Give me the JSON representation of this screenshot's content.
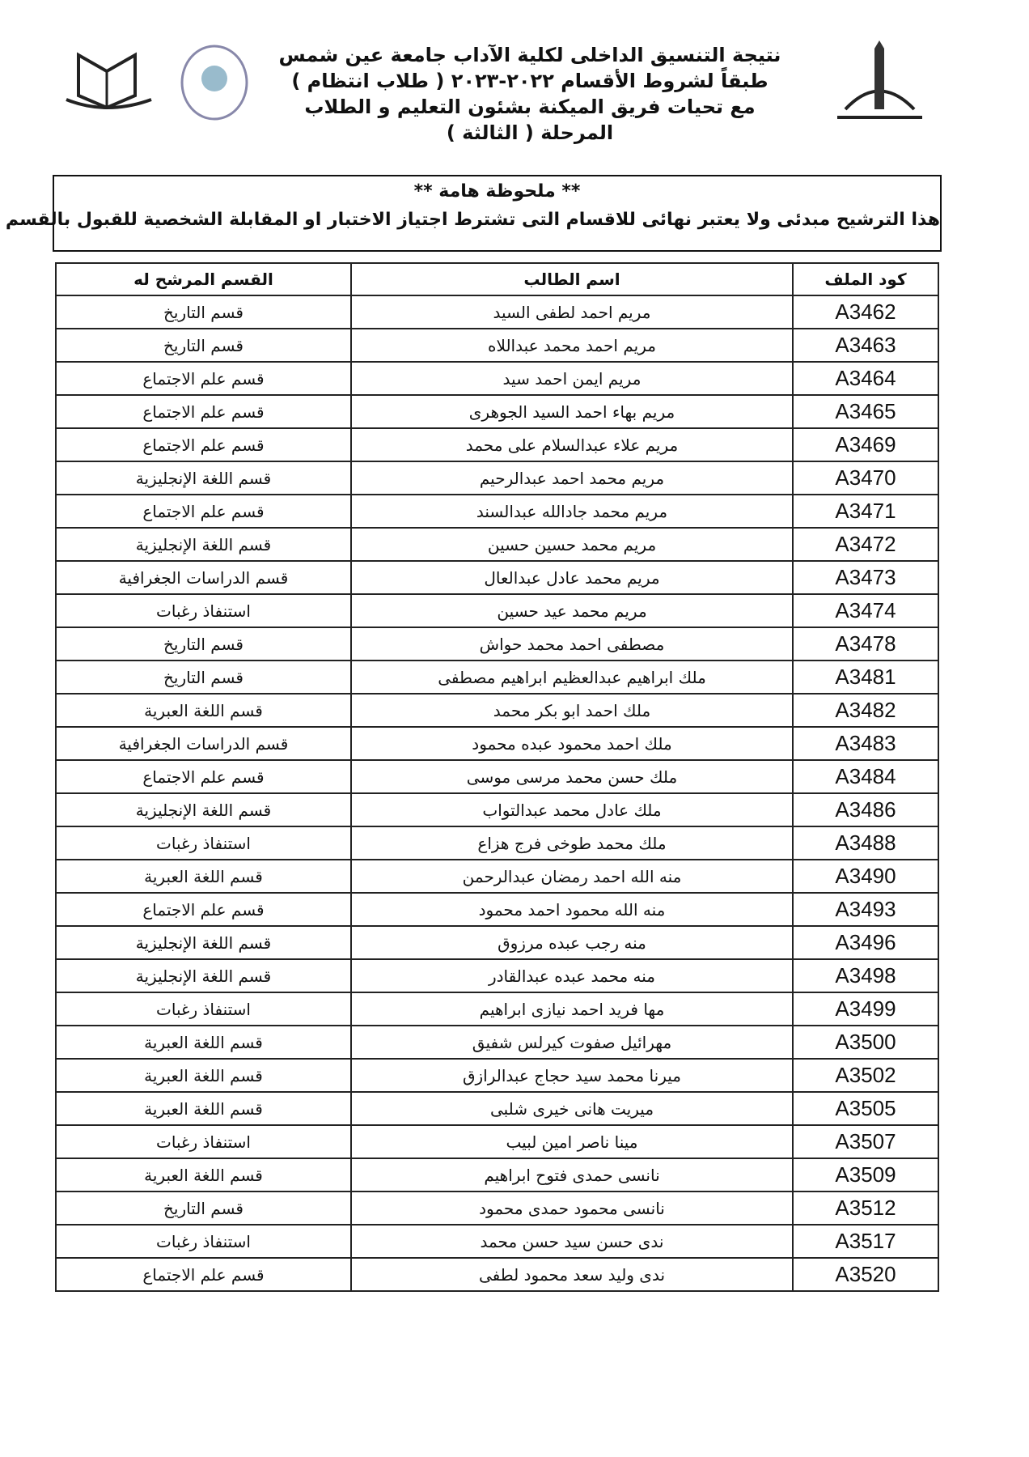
{
  "header": {
    "title_lines": [
      "نتيجة التنسيق الداخلى لكلية الآداب جامعة عين شمس",
      "طبقاً لشروط الأقسام ٢٠٢٢-٢٠٢٣ ( طلاب انتظام )",
      "مع تحيات فريق الميكنة بشئون التعليم و الطلاب",
      "المرحلة ( الثالثة )"
    ]
  },
  "note": {
    "title": "** ملحوظة هامة **",
    "text": "هذا الترشيح مبدئى ولا يعتبر نهائى للاقسام التى تشترط اجتياز الاختبار او المقابلة الشخصية للقبول بالقسم"
  },
  "table": {
    "columns": [
      "كود الملف",
      "اسم الطالب",
      "القسم المرشح له"
    ],
    "rows": [
      [
        "A3462",
        "مريم احمد لطفى السيد",
        "قسم التاريخ"
      ],
      [
        "A3463",
        "مريم احمد محمد عبداللاه",
        "قسم التاريخ"
      ],
      [
        "A3464",
        "مريم ايمن احمد سيد",
        "قسم علم الاجتماع"
      ],
      [
        "A3465",
        "مريم بهاء احمد السيد الجوهرى",
        "قسم علم الاجتماع"
      ],
      [
        "A3469",
        "مريم علاء عبدالسلام على محمد",
        "قسم علم الاجتماع"
      ],
      [
        "A3470",
        "مريم محمد احمد عبدالرحيم",
        "قسم اللغة الإنجليزية"
      ],
      [
        "A3471",
        "مريم محمد جادالله عبدالسند",
        "قسم علم الاجتماع"
      ],
      [
        "A3472",
        "مريم محمد حسين حسين",
        "قسم اللغة الإنجليزية"
      ],
      [
        "A3473",
        "مريم محمد عادل عبدالعال",
        "قسم الدراسات الجغرافية"
      ],
      [
        "A3474",
        "مريم محمد عيد حسين",
        "استنفاذ رغبات"
      ],
      [
        "A3478",
        "مصطفى احمد محمد حواش",
        "قسم التاريخ"
      ],
      [
        "A3481",
        "ملك ابراهيم عبدالعظيم ابراهيم مصطفى",
        "قسم التاريخ"
      ],
      [
        "A3482",
        "ملك احمد ابو بكر محمد",
        "قسم اللغة العبرية"
      ],
      [
        "A3483",
        "ملك احمد محمود عبده محمود",
        "قسم الدراسات الجغرافية"
      ],
      [
        "A3484",
        "ملك حسن محمد مرسى موسى",
        "قسم علم الاجتماع"
      ],
      [
        "A3486",
        "ملك عادل محمد عبدالتواب",
        "قسم اللغة الإنجليزية"
      ],
      [
        "A3488",
        "ملك محمد طوخى فرج هزاع",
        "استنفاذ رغبات"
      ],
      [
        "A3490",
        "منه الله احمد رمضان عبدالرحمن",
        "قسم اللغة العبرية"
      ],
      [
        "A3493",
        "منه الله محمود احمد محمود",
        "قسم علم الاجتماع"
      ],
      [
        "A3496",
        "منه رجب عبده مرزوق",
        "قسم اللغة الإنجليزية"
      ],
      [
        "A3498",
        "منه محمد عبده عبدالقادر",
        "قسم اللغة الإنجليزية"
      ],
      [
        "A3499",
        "مها فريد احمد نيازى ابراهيم",
        "استنفاذ رغبات"
      ],
      [
        "A3500",
        "مهرائيل صفوت كيرلس شفيق",
        "قسم اللغة العبرية"
      ],
      [
        "A3502",
        "ميرنا محمد سيد حجاج عبدالرازق",
        "قسم اللغة العبرية"
      ],
      [
        "A3505",
        "ميريت هانى خيرى شلبى",
        "قسم اللغة العبرية"
      ],
      [
        "A3507",
        "مينا ناصر امين لبيب",
        "استنفاذ رغبات"
      ],
      [
        "A3509",
        "نانسى حمدى فتوح ابراهيم",
        "قسم اللغة العبرية"
      ],
      [
        "A3512",
        "نانسى محمود حمدى محمود",
        "قسم التاريخ"
      ],
      [
        "A3517",
        "ندى حسن سيد حسن محمد",
        "استنفاذ رغبات"
      ],
      [
        "A3520",
        "ندى وليد سعد محمود لطفى",
        "قسم علم الاجتماع"
      ]
    ]
  }
}
